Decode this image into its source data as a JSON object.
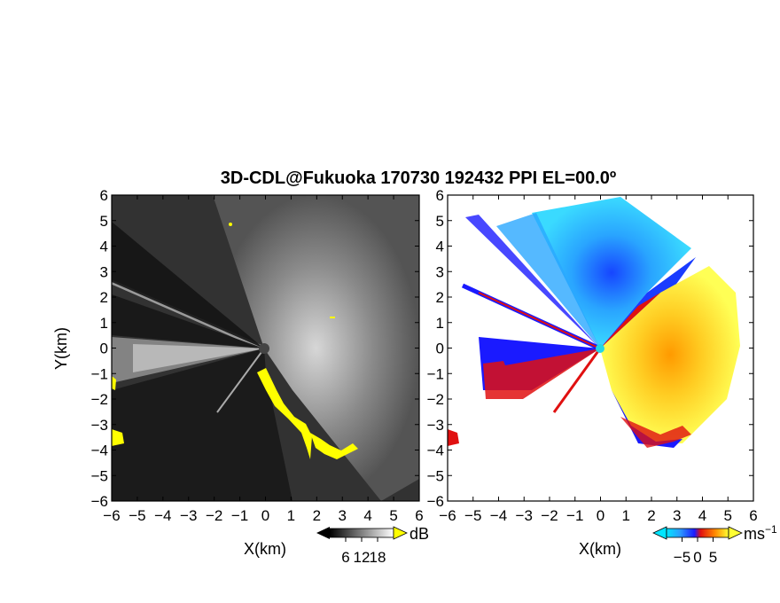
{
  "title": "3D-CDL@Fukuoka 170730 192432 PPI EL=00.0º",
  "chart_data": [
    {
      "type": "heatmap",
      "quantity": "reflectivity / SNR",
      "xlabel": "X(km)",
      "ylabel": "Y(km)",
      "xlim": [
        -6,
        6
      ],
      "ylim": [
        -6,
        6
      ],
      "xticks": [
        "−6",
        "−5",
        "−4",
        "−3",
        "−2",
        "−1",
        "0",
        "1",
        "2",
        "3",
        "4",
        "5",
        "6"
      ],
      "yticks": [
        "−6",
        "−5",
        "−4",
        "−3",
        "−2",
        "−1",
        "0",
        "1",
        "2",
        "3",
        "4",
        "5",
        "6"
      ],
      "colorbar": {
        "unit": "dB",
        "ticks": [
          "6",
          "12",
          "18"
        ],
        "tick_values": [
          6,
          12,
          18
        ],
        "range": [
          0,
          24
        ],
        "colors": [
          "#000000",
          "#ffffff"
        ],
        "over_color": "#ffff00"
      },
      "highlight_color": "#ffff00"
    },
    {
      "type": "heatmap",
      "quantity": "Doppler velocity",
      "xlabel": "X(km)",
      "xlim": [
        -6,
        6
      ],
      "ylim": [
        -6,
        6
      ],
      "xticks": [
        "−6",
        "−5",
        "−4",
        "−3",
        "−2",
        "−1",
        "0",
        "1",
        "2",
        "3",
        "4",
        "5",
        "6"
      ],
      "yticks": [
        "−6",
        "−5",
        "−4",
        "−3",
        "−2",
        "−1",
        "0",
        "1",
        "2",
        "3",
        "4",
        "5",
        "6"
      ],
      "colorbar": {
        "unit": "ms",
        "unit_exponent": "−1",
        "ticks": [
          "−5",
          "0",
          "5"
        ],
        "tick_values": [
          -5,
          0,
          5
        ],
        "range": [
          -10,
          10
        ],
        "colors": [
          "#00e5ff",
          "#2b6bff",
          "#1a1aff",
          "#e01010",
          "#ff8800",
          "#ffff33"
        ]
      }
    }
  ]
}
